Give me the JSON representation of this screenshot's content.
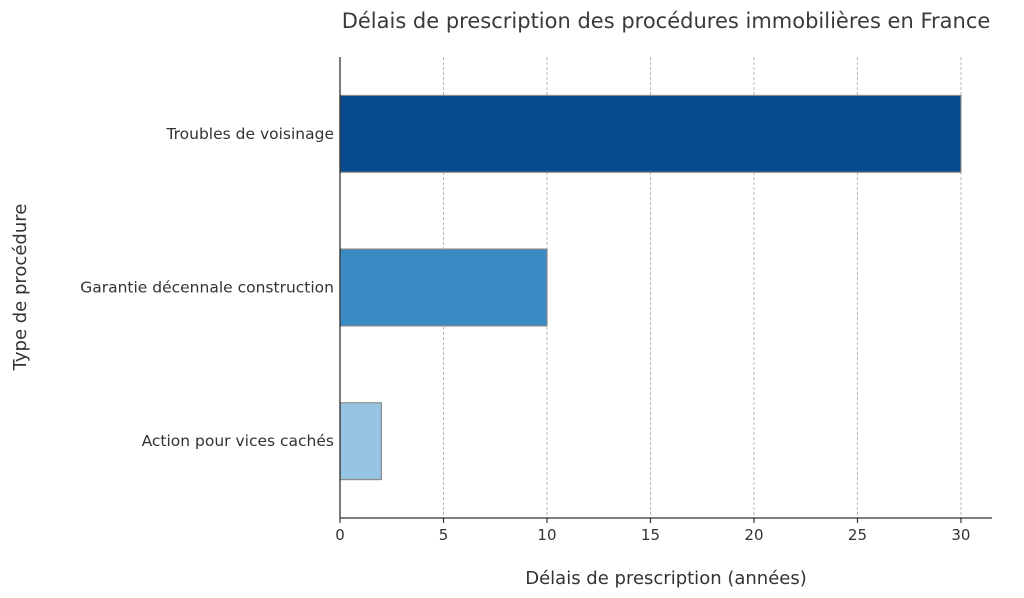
{
  "chart_data": {
    "type": "bar",
    "orientation": "horizontal",
    "title": "Délais de prescription des procédures immobilières en France",
    "xlabel": "Délais de prescription (années)",
    "ylabel": "Type de procédure",
    "categories": [
      "Troubles de voisinage",
      "Garantie décennale construction",
      "Action pour vices cachés"
    ],
    "values": [
      30,
      10,
      2
    ],
    "colors": [
      "#084a8f",
      "#3a8ac4",
      "#96c4e2"
    ],
    "xlim": [
      0,
      31.5
    ],
    "xticks": [
      0,
      5,
      10,
      15,
      20,
      25,
      30
    ],
    "xtick_labels": [
      "0",
      "5",
      "10",
      "15",
      "20",
      "25",
      "30"
    ],
    "grid": "vertical dashed",
    "legend": "none"
  }
}
